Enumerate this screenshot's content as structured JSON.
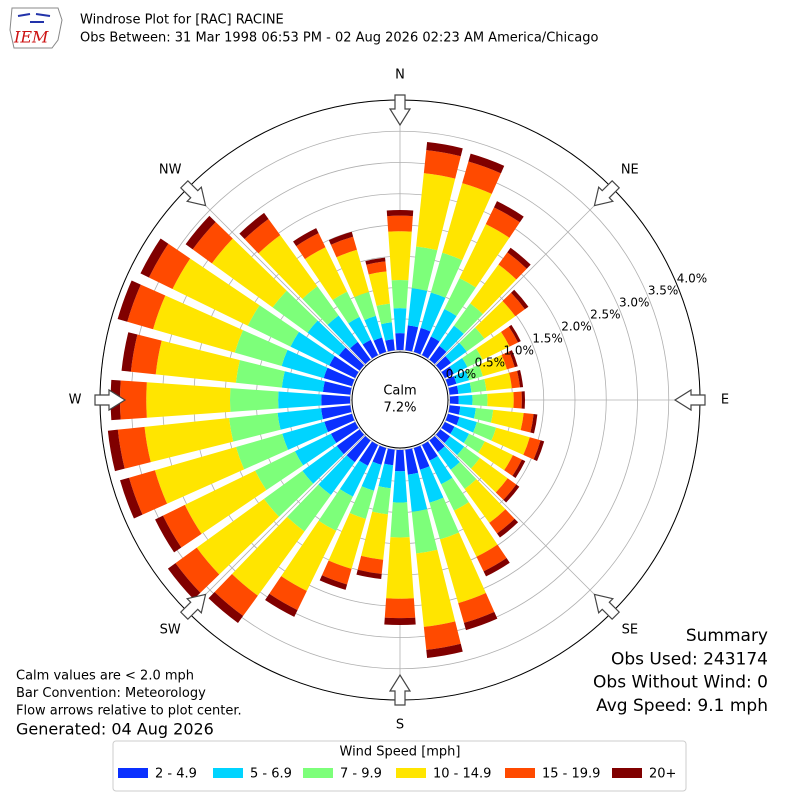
{
  "logo_text": "IEM",
  "chart_data": {
    "type": "windrose",
    "title": "Windrose Plot for [RAC] RACINE",
    "subtitle": "Obs Between: 31 Mar 1998 06:53 PM - 02 Aug 2026 02:23 AM America/Chicago",
    "calm_label": "Calm",
    "calm_value": "7.2%",
    "x": [
      0,
      10,
      20,
      30,
      40,
      50,
      60,
      70,
      80,
      90,
      100,
      110,
      120,
      130,
      140,
      150,
      160,
      170,
      180,
      190,
      200,
      210,
      220,
      230,
      240,
      250,
      260,
      270,
      280,
      290,
      300,
      310,
      320,
      330,
      340,
      350
    ],
    "xlim": [
      0,
      360
    ],
    "xticks": [
      {
        "value": 0,
        "label": "N"
      },
      {
        "value": 45,
        "label": "NE"
      },
      {
        "value": 90,
        "label": "E"
      },
      {
        "value": 135,
        "label": "SE"
      },
      {
        "value": 180,
        "label": "S"
      },
      {
        "value": 225,
        "label": "SW"
      },
      {
        "value": 270,
        "label": "W"
      },
      {
        "value": 315,
        "label": "NW"
      }
    ],
    "ylim": [
      0,
      4
    ],
    "yticks": [
      {
        "value": 0,
        "label": "0.0%"
      },
      {
        "value": 0.5,
        "label": "0.5%"
      },
      {
        "value": 1,
        "label": "1.0%"
      },
      {
        "value": 1.5,
        "label": "1.5%"
      },
      {
        "value": 2,
        "label": "2.0%"
      },
      {
        "value": 2.5,
        "label": "2.5%"
      },
      {
        "value": 3,
        "label": "3.0%"
      },
      {
        "value": 3.5,
        "label": "3.5%"
      },
      {
        "value": 4,
        "label": "4.0%"
      }
    ],
    "grid": true,
    "legend_title": "Wind Speed [mph]",
    "series": [
      {
        "name": "2 - 4.9",
        "color": "#0a30ff",
        "values": [
          0.27,
          0.4,
          0.4,
          0.33,
          0.27,
          0.21,
          0.16,
          0.14,
          0.14,
          0.14,
          0.17,
          0.19,
          0.17,
          0.19,
          0.23,
          0.28,
          0.36,
          0.4,
          0.34,
          0.25,
          0.28,
          0.37,
          0.43,
          0.45,
          0.43,
          0.46,
          0.47,
          0.46,
          0.44,
          0.47,
          0.46,
          0.41,
          0.35,
          0.27,
          0.24,
          0.18
        ]
      },
      {
        "name": "5 - 6.9",
        "color": "#00d4ff",
        "values": [
          0.4,
          0.6,
          0.59,
          0.49,
          0.4,
          0.31,
          0.24,
          0.21,
          0.21,
          0.22,
          0.25,
          0.29,
          0.26,
          0.28,
          0.35,
          0.42,
          0.55,
          0.6,
          0.5,
          0.37,
          0.43,
          0.55,
          0.65,
          0.68,
          0.64,
          0.7,
          0.7,
          0.69,
          0.66,
          0.7,
          0.69,
          0.62,
          0.52,
          0.41,
          0.36,
          0.27
        ]
      },
      {
        "name": "7 - 9.9",
        "color": "#7dff7a",
        "values": [
          0.45,
          0.67,
          0.66,
          0.55,
          0.44,
          0.35,
          0.27,
          0.23,
          0.24,
          0.24,
          0.28,
          0.32,
          0.28,
          0.31,
          0.38,
          0.47,
          0.61,
          0.67,
          0.56,
          0.42,
          0.47,
          0.61,
          0.72,
          0.76,
          0.71,
          0.77,
          0.78,
          0.77,
          0.74,
          0.78,
          0.76,
          0.69,
          0.58,
          0.45,
          0.4,
          0.3
        ]
      },
      {
        "name": "10 - 14.9",
        "color": "#ffe500",
        "values": [
          0.78,
          1.18,
          1.16,
          0.96,
          0.77,
          0.61,
          0.48,
          0.4,
          0.41,
          0.42,
          0.49,
          0.56,
          0.5,
          0.55,
          0.67,
          0.82,
          1.06,
          1.18,
          0.98,
          0.73,
          0.83,
          1.07,
          1.27,
          1.33,
          1.25,
          1.35,
          1.36,
          1.34,
          1.29,
          1.36,
          1.34,
          1.2,
          1.01,
          0.79,
          0.7,
          0.52
        ]
      },
      {
        "name": "15 - 19.9",
        "color": "#ff4a00",
        "values": [
          0.25,
          0.37,
          0.36,
          0.3,
          0.24,
          0.19,
          0.15,
          0.13,
          0.13,
          0.13,
          0.16,
          0.18,
          0.16,
          0.17,
          0.21,
          0.26,
          0.33,
          0.37,
          0.31,
          0.23,
          0.26,
          0.34,
          0.4,
          0.42,
          0.39,
          0.43,
          0.43,
          0.42,
          0.4,
          0.43,
          0.42,
          0.38,
          0.32,
          0.25,
          0.22,
          0.16
        ]
      },
      {
        "name": "20+",
        "color": "#800000",
        "values": [
          0.09,
          0.13,
          0.13,
          0.11,
          0.09,
          0.07,
          0.05,
          0.05,
          0.05,
          0.05,
          0.06,
          0.06,
          0.06,
          0.06,
          0.08,
          0.09,
          0.12,
          0.13,
          0.11,
          0.08,
          0.09,
          0.12,
          0.14,
          0.15,
          0.14,
          0.15,
          0.16,
          0.15,
          0.15,
          0.16,
          0.15,
          0.14,
          0.12,
          0.09,
          0.08,
          0.06
        ]
      }
    ]
  },
  "notes": [
    "Calm values are < 2.0 mph",
    "Bar Convention: Meteorology",
    "Flow arrows relative to plot center."
  ],
  "generated": "Generated: 04 Aug 2026",
  "summary": [
    "Summary",
    "Obs Used: 243174",
    "Obs Without Wind: 0",
    "Avg Speed: 9.1 mph"
  ]
}
